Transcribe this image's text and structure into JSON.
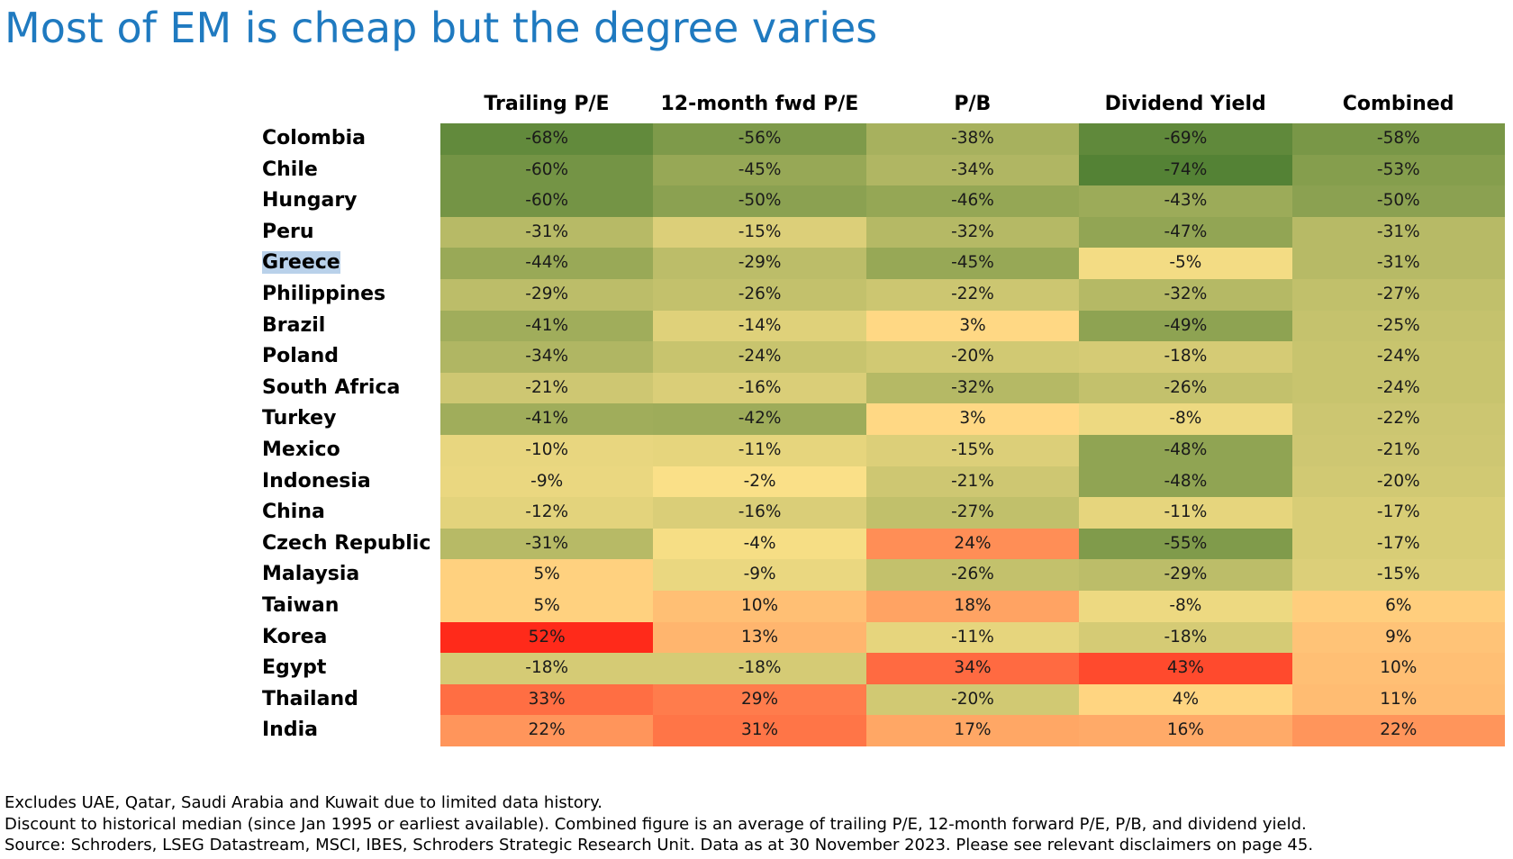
{
  "title": "Most of EM is cheap but the degree varies",
  "chart_data": {
    "type": "heatmap",
    "title": "Most of EM is cheap but the degree varies",
    "columns": [
      "Trailing P/E",
      "12-month fwd P/E",
      "P/B",
      "Dividend Yield",
      "Combined"
    ],
    "rows": [
      "Colombia",
      "Chile",
      "Hungary",
      "Peru",
      "Greece",
      "Philippines",
      "Brazil",
      "Poland",
      "South Africa",
      "Turkey",
      "Mexico",
      "Indonesia",
      "China",
      "Czech Republic",
      "Malaysia",
      "Taiwan",
      "Korea",
      "Egypt",
      "Thailand",
      "India"
    ],
    "values": [
      [
        -68,
        -56,
        -38,
        -69,
        -58
      ],
      [
        -60,
        -45,
        -34,
        -74,
        -53
      ],
      [
        -60,
        -50,
        -46,
        -43,
        -50
      ],
      [
        -31,
        -15,
        -32,
        -47,
        -31
      ],
      [
        -44,
        -29,
        -45,
        -5,
        -31
      ],
      [
        -29,
        -26,
        -22,
        -32,
        -27
      ],
      [
        -41,
        -14,
        3,
        -49,
        -25
      ],
      [
        -34,
        -24,
        -20,
        -18,
        -24
      ],
      [
        -21,
        -16,
        -32,
        -26,
        -24
      ],
      [
        -41,
        -42,
        3,
        -8,
        -22
      ],
      [
        -10,
        -11,
        -15,
        -48,
        -21
      ],
      [
        -9,
        -2,
        -21,
        -48,
        -20
      ],
      [
        -12,
        -16,
        -27,
        -11,
        -17
      ],
      [
        -31,
        -4,
        24,
        -55,
        -17
      ],
      [
        5,
        -9,
        -26,
        -29,
        -15
      ],
      [
        5,
        10,
        18,
        -8,
        6
      ],
      [
        52,
        13,
        -11,
        -18,
        9
      ],
      [
        -18,
        -18,
        34,
        43,
        10
      ],
      [
        33,
        29,
        -20,
        4,
        11
      ],
      [
        22,
        31,
        17,
        16,
        22
      ]
    ],
    "unit": "%",
    "highlighted_row": "Greece",
    "colors": {
      "most_negative": "#548235",
      "mid": "#ffe38a",
      "most_positive": "#ff2a1a"
    }
  },
  "footnotes": [
    "Excludes UAE, Qatar, Saudi Arabia and Kuwait due to limited data history.",
    "Discount to historical median (since Jan 1995 or earliest available). Combined figure is an average of trailing P/E, 12-month forward P/E, P/B, and dividend yield.",
    "Source: Schroders, LSEG Datastream, MSCI, IBES, Schroders Strategic Research Unit. Data as at 30 November 2023. Please see relevant disclaimers on page 45."
  ]
}
